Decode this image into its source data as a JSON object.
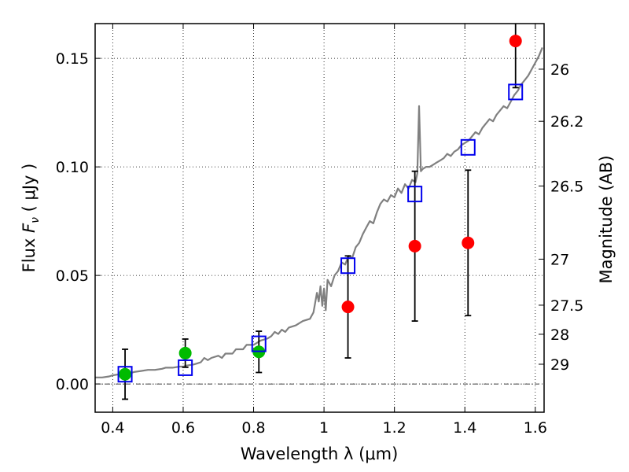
{
  "chart_data": {
    "type": "scatter",
    "xlabel": "Wavelength  λ (μm)",
    "ylabel_parts": [
      "Flux  ",
      "F",
      "ν",
      "  ( μJy )"
    ],
    "y2label": "Magnitude (AB)",
    "xlim": [
      0.35,
      1.625
    ],
    "ylim": [
      -0.013,
      0.166
    ],
    "grid": true,
    "x_ticks": [
      0.4,
      0.6,
      0.8,
      1.0,
      1.2,
      1.4,
      1.6
    ],
    "x_tick_labels": [
      "0.4",
      "0.6",
      "0.8",
      "1",
      "1.2",
      "1.4",
      "1.6"
    ],
    "y_ticks": [
      0.0,
      0.05,
      0.1,
      0.15
    ],
    "y_tick_labels": [
      "0.00",
      "0.05",
      "0.10",
      "0.15"
    ],
    "y2_ticks": [
      {
        "label": "26",
        "flux": 0.145
      },
      {
        "label": "26.2",
        "flux": 0.121
      },
      {
        "label": "26.5",
        "flux": 0.0912
      },
      {
        "label": "27",
        "flux": 0.0575
      },
      {
        "label": "27.5",
        "flux": 0.0363
      },
      {
        "label": "28",
        "flux": 0.0229
      },
      {
        "label": "29",
        "flux": 0.0091
      }
    ],
    "zero_line": 0.0,
    "series": [
      {
        "kind": "line",
        "color": "#808080",
        "x": [
          0.35,
          0.37,
          0.39,
          0.4,
          0.42,
          0.44,
          0.45,
          0.46,
          0.48,
          0.5,
          0.52,
          0.54,
          0.55,
          0.57,
          0.59,
          0.6,
          0.61,
          0.63,
          0.64,
          0.65,
          0.66,
          0.67,
          0.68,
          0.7,
          0.71,
          0.72,
          0.74,
          0.75,
          0.77,
          0.78,
          0.8,
          0.82,
          0.84,
          0.85,
          0.86,
          0.87,
          0.88,
          0.89,
          0.9,
          0.92,
          0.93,
          0.94,
          0.96,
          0.97,
          0.98,
          0.985,
          0.99,
          0.995,
          1.0,
          1.005,
          1.01,
          1.02,
          1.03,
          1.04,
          1.05,
          1.06,
          1.07,
          1.08,
          1.09,
          1.1,
          1.11,
          1.12,
          1.13,
          1.14,
          1.15,
          1.16,
          1.17,
          1.18,
          1.19,
          1.2,
          1.21,
          1.22,
          1.23,
          1.24,
          1.25,
          1.26,
          1.265,
          1.27,
          1.275,
          1.28,
          1.29,
          1.3,
          1.31,
          1.32,
          1.33,
          1.34,
          1.35,
          1.36,
          1.37,
          1.38,
          1.39,
          1.4,
          1.41,
          1.42,
          1.43,
          1.44,
          1.45,
          1.46,
          1.47,
          1.48,
          1.49,
          1.5,
          1.51,
          1.52,
          1.53,
          1.54,
          1.55,
          1.56,
          1.57,
          1.58,
          1.59,
          1.6,
          1.61,
          1.62
        ],
        "y": [
          0.003,
          0.003,
          0.0035,
          0.004,
          0.0045,
          0.005,
          0.005,
          0.0055,
          0.006,
          0.0065,
          0.0065,
          0.007,
          0.0075,
          0.0075,
          0.008,
          0.008,
          0.0085,
          0.009,
          0.0095,
          0.01,
          0.012,
          0.011,
          0.012,
          0.013,
          0.012,
          0.014,
          0.014,
          0.016,
          0.016,
          0.018,
          0.018,
          0.02,
          0.021,
          0.022,
          0.024,
          0.023,
          0.025,
          0.024,
          0.026,
          0.027,
          0.028,
          0.029,
          0.03,
          0.033,
          0.042,
          0.038,
          0.045,
          0.036,
          0.044,
          0.034,
          0.048,
          0.045,
          0.05,
          0.052,
          0.056,
          0.055,
          0.059,
          0.058,
          0.063,
          0.065,
          0.069,
          0.072,
          0.075,
          0.074,
          0.079,
          0.083,
          0.085,
          0.084,
          0.087,
          0.086,
          0.09,
          0.088,
          0.092,
          0.09,
          0.094,
          0.093,
          0.097,
          0.128,
          0.098,
          0.099,
          0.1,
          0.1,
          0.101,
          0.102,
          0.103,
          0.104,
          0.106,
          0.105,
          0.107,
          0.108,
          0.11,
          0.111,
          0.112,
          0.114,
          0.116,
          0.115,
          0.118,
          0.12,
          0.122,
          0.121,
          0.124,
          0.126,
          0.128,
          0.127,
          0.13,
          0.133,
          0.135,
          0.138,
          0.14,
          0.142,
          0.145,
          0.148,
          0.151,
          0.155
        ]
      },
      {
        "kind": "points",
        "color": "#00bb00",
        "x": [
          0.435,
          0.606,
          0.815
        ],
        "y": [
          0.0045,
          0.0142,
          0.0148
        ],
        "yerr": [
          0.0115,
          0.0065,
          0.0095
        ]
      },
      {
        "kind": "points",
        "color": "#ff0000",
        "x": [
          1.068,
          1.258,
          1.409,
          1.544
        ],
        "y": [
          0.0355,
          0.0635,
          0.065,
          0.158
        ],
        "yerr": [
          0.0235,
          0.0345,
          0.0335,
          0.0215
        ]
      },
      {
        "kind": "squares",
        "color": "#0000ee",
        "x": [
          0.435,
          0.606,
          0.815,
          1.068,
          1.258,
          1.409,
          1.544
        ],
        "y": [
          0.0045,
          0.0075,
          0.0185,
          0.0545,
          0.0875,
          0.109,
          0.1345
        ]
      }
    ]
  }
}
